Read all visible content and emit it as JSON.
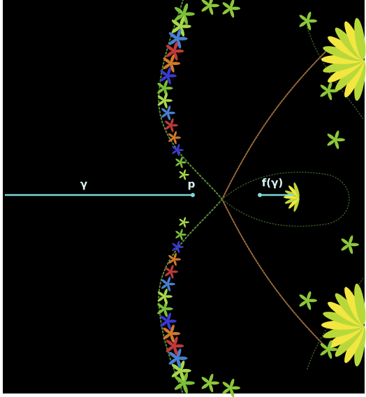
{
  "labels": {
    "curve": "γ",
    "point": "p",
    "image": "f(γ)"
  }
}
